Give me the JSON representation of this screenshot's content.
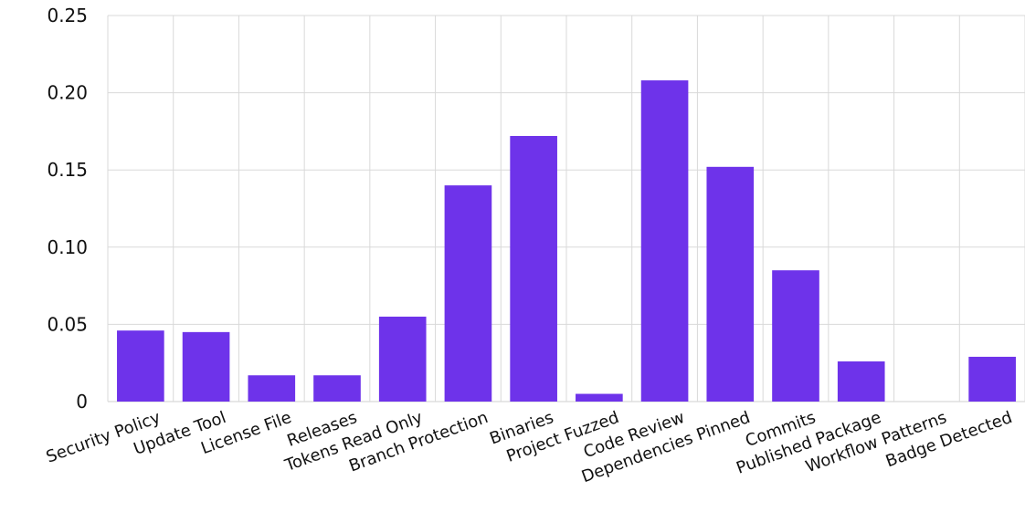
{
  "chart_data": {
    "type": "bar",
    "title": "",
    "xlabel": "",
    "ylabel": "",
    "ylim": [
      0,
      0.25
    ],
    "yticks": [
      0,
      0.05,
      0.1,
      0.15,
      0.2,
      0.25
    ],
    "ytick_labels": [
      "0",
      "0.05",
      "0.10",
      "0.15",
      "0.20",
      "0.25"
    ],
    "grid": true,
    "bar_color": "#6e33ea",
    "categories": [
      "Security Policy",
      "Update Tool",
      "License File",
      "Releases",
      "Tokens Read Only",
      "Branch Protection",
      "Binaries",
      "Project Fuzzed",
      "Code Review",
      "Dependencies Pinned",
      "Commits",
      "Published Package",
      "Workflow Patterns",
      "Badge Detected"
    ],
    "values": [
      0.046,
      0.045,
      0.017,
      0.017,
      0.055,
      0.14,
      0.172,
      0.005,
      0.208,
      0.152,
      0.085,
      0.026,
      0.0,
      0.029
    ]
  }
}
